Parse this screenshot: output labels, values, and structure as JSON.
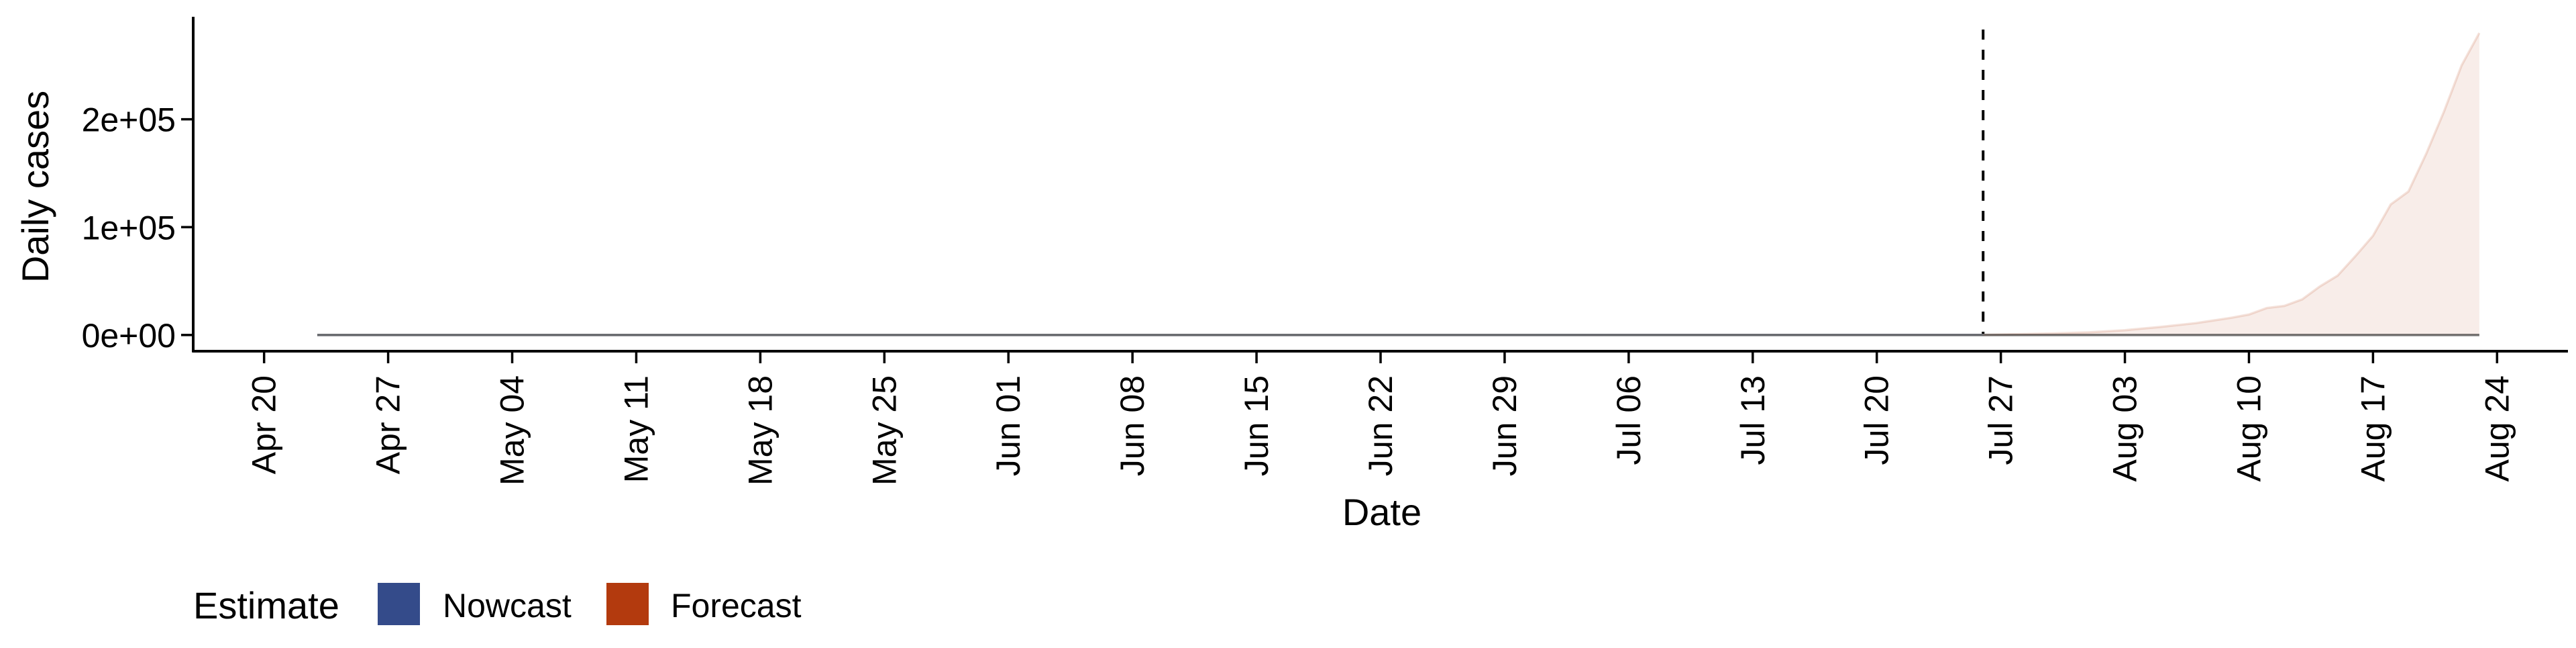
{
  "chart_data": {
    "type": "area",
    "xlabel": "Date",
    "ylabel": "Daily cases",
    "x_axis_type": "date",
    "xlim": [
      "2020-04-16",
      "2020-08-28"
    ],
    "ylim": [
      -15000,
      295000
    ],
    "x_ticks": [
      {
        "date": "2020-04-20",
        "label": "Apr 20"
      },
      {
        "date": "2020-04-27",
        "label": "Apr 27"
      },
      {
        "date": "2020-05-04",
        "label": "May 04"
      },
      {
        "date": "2020-05-11",
        "label": "May 11"
      },
      {
        "date": "2020-05-18",
        "label": "May 18"
      },
      {
        "date": "2020-05-25",
        "label": "May 25"
      },
      {
        "date": "2020-06-01",
        "label": "Jun 01"
      },
      {
        "date": "2020-06-08",
        "label": "Jun 08"
      },
      {
        "date": "2020-06-15",
        "label": "Jun 15"
      },
      {
        "date": "2020-06-22",
        "label": "Jun 22"
      },
      {
        "date": "2020-06-29",
        "label": "Jun 29"
      },
      {
        "date": "2020-07-06",
        "label": "Jul 06"
      },
      {
        "date": "2020-07-13",
        "label": "Jul 13"
      },
      {
        "date": "2020-07-20",
        "label": "Jul 20"
      },
      {
        "date": "2020-07-27",
        "label": "Jul 27"
      },
      {
        "date": "2020-08-03",
        "label": "Aug 03"
      },
      {
        "date": "2020-08-10",
        "label": "Aug 10"
      },
      {
        "date": "2020-08-17",
        "label": "Aug 17"
      },
      {
        "date": "2020-08-24",
        "label": "Aug 24"
      }
    ],
    "y_ticks": [
      {
        "value": 0,
        "label": "0e+00"
      },
      {
        "value": 100000,
        "label": "1e+05"
      },
      {
        "value": 200000,
        "label": "2e+05"
      }
    ],
    "vline_date": "2020-07-26",
    "grid": false,
    "legend": {
      "title": "Estimate",
      "position": "bottom-left",
      "entries": [
        {
          "label": "Nowcast",
          "color": "#344b8a"
        },
        {
          "label": "Forecast",
          "color": "#b33a0e"
        }
      ]
    },
    "series": [
      {
        "name": "Nowcast",
        "color": "#344b8a",
        "x": [
          "2020-04-23",
          "2020-06-15",
          "2020-07-06",
          "2020-07-26"
        ],
        "upper": [
          0,
          0,
          60,
          200
        ],
        "lower": [
          0,
          0,
          0,
          0
        ]
      },
      {
        "name": "Forecast",
        "color": "#b33a0e",
        "x": [
          "2020-07-26",
          "2020-07-30",
          "2020-08-01",
          "2020-08-03",
          "2020-08-05",
          "2020-08-07",
          "2020-08-09",
          "2020-08-10",
          "2020-08-11",
          "2020-08-12",
          "2020-08-13",
          "2020-08-14",
          "2020-08-15",
          "2020-08-16",
          "2020-08-17",
          "2020-08-18",
          "2020-08-19",
          "2020-08-20",
          "2020-08-21",
          "2020-08-22",
          "2020-08-23"
        ],
        "upper": [
          200,
          1500,
          2500,
          4500,
          7500,
          11000,
          16000,
          19000,
          25000,
          27000,
          33000,
          45000,
          55000,
          73000,
          92000,
          121000,
          133000,
          168000,
          207000,
          250000,
          280000
        ],
        "lower": [
          0,
          0,
          0,
          0,
          0,
          0,
          0,
          0,
          0,
          0,
          0,
          0,
          0,
          0,
          0,
          0,
          0,
          0,
          0,
          0,
          0
        ]
      }
    ],
    "median_line": {
      "x": [
        "2020-04-23",
        "2020-08-23"
      ],
      "y": [
        0,
        0
      ]
    }
  }
}
